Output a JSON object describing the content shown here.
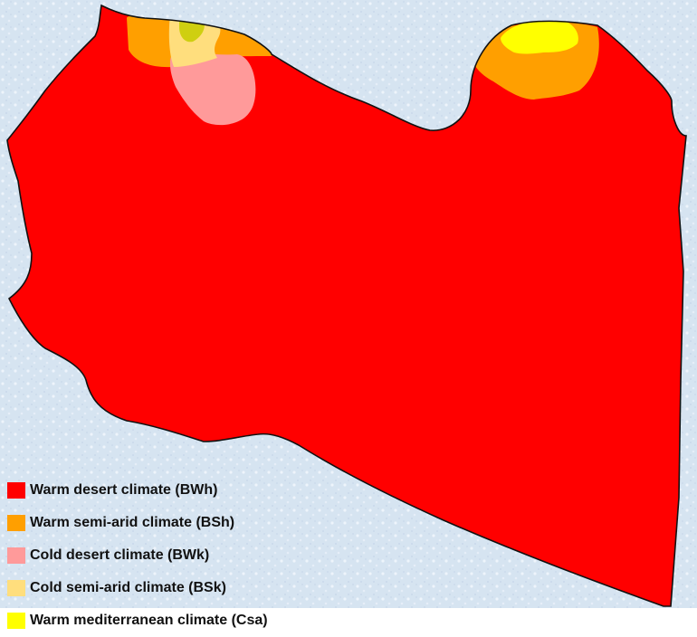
{
  "colors": {
    "background": "#d6e4f1",
    "background_speckle": "#eef4fb",
    "border": "#111111"
  },
  "legend": [
    {
      "label": "Warm desert climate (BWh)",
      "color": "#ff0000"
    },
    {
      "label": "Warm semi-arid climate (BSh)",
      "color": "#ff9f00"
    },
    {
      "label": "Cold desert climate (BWk)",
      "color": "#ff9a9a"
    },
    {
      "label": "Cold semi-arid climate (BSk)",
      "color": "#ffde7d"
    },
    {
      "label": "Warm mediterranean climate (Csa)",
      "color": "#ffff00"
    }
  ]
}
